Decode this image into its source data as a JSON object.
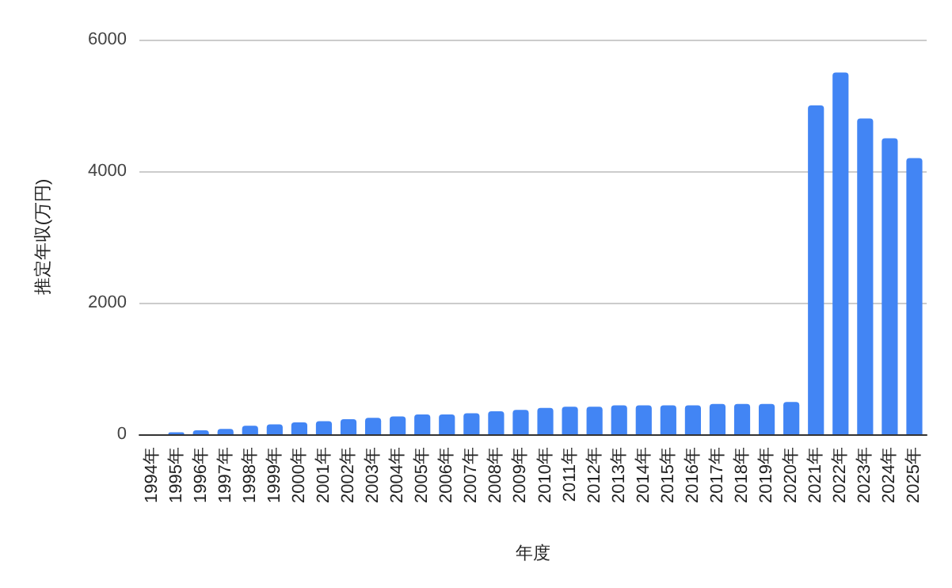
{
  "chart_data": {
    "type": "bar",
    "xlabel": "年度",
    "ylabel": "推定年収(万円)",
    "categories": [
      "1994年",
      "1995年",
      "1996年",
      "1997年",
      "1998年",
      "1999年",
      "2000年",
      "2001年",
      "2002年",
      "2003年",
      "2004年",
      "2005年",
      "2006年",
      "2007年",
      "2008年",
      "2009年",
      "2010年",
      "2011年",
      "2012年",
      "2013年",
      "2014年",
      "2015年",
      "2016年",
      "2017年",
      "2018年",
      "2019年",
      "2020年",
      "2021年",
      "2022年",
      "2023年",
      "2024年",
      "2025年"
    ],
    "series": [
      {
        "color": "#4285f4",
        "values": [
          0,
          30,
          60,
          80,
          130,
          150,
          180,
          200,
          230,
          250,
          270,
          300,
          300,
          320,
          350,
          370,
          400,
          420,
          420,
          440,
          440,
          440,
          440,
          460,
          460,
          460,
          490,
          5000,
          5500,
          4800,
          4500,
          4200
        ]
      }
    ],
    "ylim": [
      0,
      6000
    ],
    "yticks": [
      0,
      2000,
      4000,
      6000
    ],
    "grid": "y"
  }
}
